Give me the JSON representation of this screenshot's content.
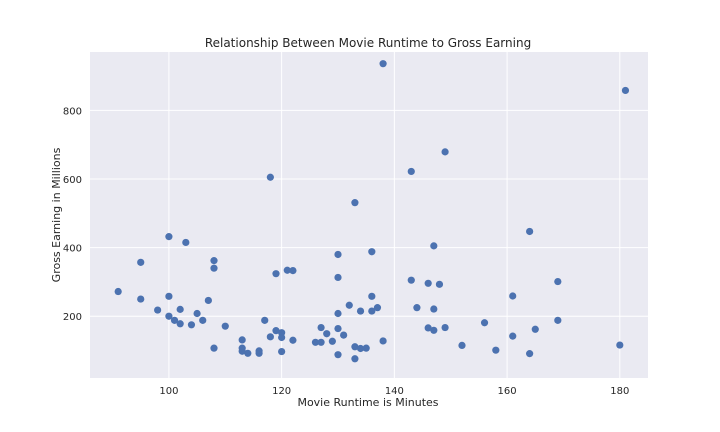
{
  "chart_data": {
    "type": "scatter",
    "title": "Relationship Between Movie Runtime to Gross Earning",
    "xlabel": "Movie Runtime is Minutes",
    "ylabel": "Gross Earning in Millions",
    "xlim": [
      86,
      185
    ],
    "ylim": [
      20,
      970
    ],
    "xticks": [
      100,
      120,
      140,
      160,
      180
    ],
    "yticks": [
      200,
      400,
      600,
      800
    ],
    "grid": true,
    "marker_color": "#4C72B0",
    "background_color": "#EAEAF2",
    "points": [
      {
        "x": 91,
        "y": 272
      },
      {
        "x": 95,
        "y": 357
      },
      {
        "x": 95,
        "y": 250
      },
      {
        "x": 98,
        "y": 218
      },
      {
        "x": 100,
        "y": 432
      },
      {
        "x": 100,
        "y": 258
      },
      {
        "x": 100,
        "y": 200
      },
      {
        "x": 101,
        "y": 188
      },
      {
        "x": 102,
        "y": 220
      },
      {
        "x": 102,
        "y": 178
      },
      {
        "x": 103,
        "y": 415
      },
      {
        "x": 104,
        "y": 175
      },
      {
        "x": 105,
        "y": 208
      },
      {
        "x": 106,
        "y": 188
      },
      {
        "x": 107,
        "y": 246
      },
      {
        "x": 108,
        "y": 362
      },
      {
        "x": 108,
        "y": 340
      },
      {
        "x": 108,
        "y": 107
      },
      {
        "x": 110,
        "y": 171
      },
      {
        "x": 113,
        "y": 131
      },
      {
        "x": 113,
        "y": 107
      },
      {
        "x": 113,
        "y": 98
      },
      {
        "x": 114,
        "y": 92
      },
      {
        "x": 116,
        "y": 99
      },
      {
        "x": 116,
        "y": 92
      },
      {
        "x": 117,
        "y": 188
      },
      {
        "x": 118,
        "y": 605
      },
      {
        "x": 118,
        "y": 140
      },
      {
        "x": 119,
        "y": 324
      },
      {
        "x": 119,
        "y": 158
      },
      {
        "x": 120,
        "y": 152
      },
      {
        "x": 120,
        "y": 138
      },
      {
        "x": 120,
        "y": 97
      },
      {
        "x": 121,
        "y": 334
      },
      {
        "x": 122,
        "y": 333
      },
      {
        "x": 122,
        "y": 130
      },
      {
        "x": 126,
        "y": 124
      },
      {
        "x": 127,
        "y": 167
      },
      {
        "x": 127,
        "y": 124
      },
      {
        "x": 128,
        "y": 149
      },
      {
        "x": 129,
        "y": 127
      },
      {
        "x": 130,
        "y": 380
      },
      {
        "x": 130,
        "y": 313
      },
      {
        "x": 130,
        "y": 208
      },
      {
        "x": 130,
        "y": 164
      },
      {
        "x": 130,
        "y": 88
      },
      {
        "x": 131,
        "y": 145
      },
      {
        "x": 132,
        "y": 232
      },
      {
        "x": 133,
        "y": 531
      },
      {
        "x": 133,
        "y": 111
      },
      {
        "x": 133,
        "y": 76
      },
      {
        "x": 134,
        "y": 215
      },
      {
        "x": 134,
        "y": 106
      },
      {
        "x": 135,
        "y": 107
      },
      {
        "x": 136,
        "y": 388
      },
      {
        "x": 136,
        "y": 258
      },
      {
        "x": 136,
        "y": 215
      },
      {
        "x": 137,
        "y": 225
      },
      {
        "x": 138,
        "y": 936
      },
      {
        "x": 138,
        "y": 128
      },
      {
        "x": 143,
        "y": 622
      },
      {
        "x": 143,
        "y": 305
      },
      {
        "x": 144,
        "y": 225
      },
      {
        "x": 146,
        "y": 296
      },
      {
        "x": 146,
        "y": 166
      },
      {
        "x": 147,
        "y": 405
      },
      {
        "x": 147,
        "y": 221
      },
      {
        "x": 147,
        "y": 159
      },
      {
        "x": 148,
        "y": 293
      },
      {
        "x": 149,
        "y": 679
      },
      {
        "x": 149,
        "y": 167
      },
      {
        "x": 152,
        "y": 115
      },
      {
        "x": 156,
        "y": 181
      },
      {
        "x": 158,
        "y": 101
      },
      {
        "x": 161,
        "y": 259
      },
      {
        "x": 161,
        "y": 142
      },
      {
        "x": 164,
        "y": 447
      },
      {
        "x": 164,
        "y": 91
      },
      {
        "x": 165,
        "y": 162
      },
      {
        "x": 169,
        "y": 301
      },
      {
        "x": 169,
        "y": 188
      },
      {
        "x": 180,
        "y": 116
      },
      {
        "x": 181,
        "y": 858
      }
    ]
  }
}
